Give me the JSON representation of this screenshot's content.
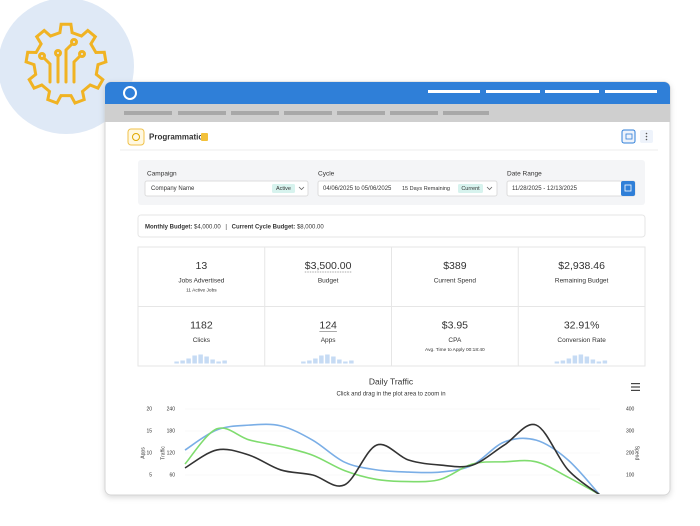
{
  "header": {
    "title": "Programmatic"
  },
  "filters": {
    "campaign": {
      "label": "Campaign",
      "value": "Company Name",
      "badge": "Active"
    },
    "cycle": {
      "label": "Cycle",
      "value": "04/06/2025 to 05/06/2025",
      "note": "15 Days Remaining",
      "badge": "Current"
    },
    "date_range": {
      "label": "Date Range",
      "value": "11/28/2025 - 12/13/2025"
    }
  },
  "budget": {
    "monthly_label": "Monthly Budget:",
    "monthly_value": "$4,000.00",
    "separator": "|",
    "cycle_label": "Current Cycle Budget:",
    "cycle_value": "$8,000.00"
  },
  "stats": [
    {
      "value": "13",
      "label": "Jobs Advertised",
      "note": "11 Active Jobs"
    },
    {
      "value": "$3,500.00",
      "label": "Budget"
    },
    {
      "value": "$389",
      "label": "Current Spend"
    },
    {
      "value": "$2,938.46",
      "label": "Remaining Budget"
    },
    {
      "value": "1182",
      "label": "Clicks"
    },
    {
      "value": "124",
      "label": "Apps"
    },
    {
      "value": "$3.95",
      "label": "CPA",
      "note": "Avg. Time to Apply 00:18:40"
    },
    {
      "value": "32.91%",
      "label": "Conversion Rate"
    }
  ],
  "chart_data": {
    "type": "line",
    "title": "Daily Traffic",
    "subtitle": "Click and drag in the plot area to zoom in",
    "ylabel": "Apps",
    "ylim": [
      0,
      20
    ],
    "yticks": [
      5,
      10,
      15,
      20
    ],
    "y2label": "Traffic",
    "y2lim": [
      0,
      240
    ],
    "y2ticks": [
      60,
      120,
      180,
      240
    ],
    "y3label": "Spend",
    "y3lim": [
      0,
      400
    ],
    "y3ticks": [
      100,
      200,
      300,
      400
    ],
    "series": [
      {
        "color": "#7aaee6",
        "axis": "y2",
        "values": [
          128,
          183,
          196,
          194,
          155,
          95,
          74,
          68,
          68,
          87,
          150,
          155,
          101,
          5
        ]
      },
      {
        "color": "#7fdc6e",
        "axis": "y",
        "values": [
          7.5,
          15.5,
          13,
          11.5,
          9.5,
          6,
          4,
          3.5,
          4,
          7.5,
          8,
          8,
          4.5,
          0.5
        ]
      },
      {
        "color": "#333333",
        "axis": "y3",
        "values": [
          132,
          214,
          191,
          123,
          100,
          55,
          236,
          168,
          145,
          145,
          236,
          327,
          123,
          9
        ]
      }
    ]
  }
}
